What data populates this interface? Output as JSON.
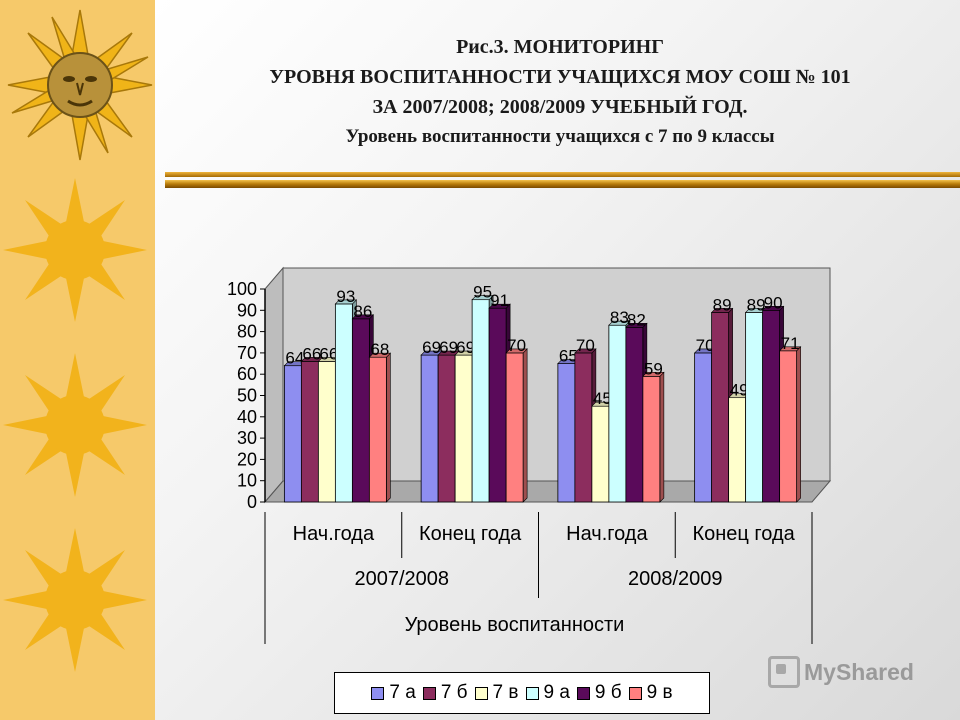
{
  "header": {
    "line1": "Рис.3. МОНИТОРИНГ",
    "line2": "УРОВНЯ ВОСПИТАННОСТИ УЧАЩИХСЯ МОУ СОШ № 101",
    "line3": "ЗА 2007/2008; 2008/2009 УЧЕБНЫЙ ГОД.",
    "line4": "Уровень воспитанности учащихся с 7 по 9 классы"
  },
  "watermark": {
    "text": "MyShared"
  },
  "colors": {
    "left_strip": "#f6c96a",
    "sun": "#f2b31c",
    "rule": "#c07d08"
  },
  "chart_data": {
    "type": "bar",
    "title": "",
    "categories": [
      "Нач.года",
      "Конец года",
      "Нач.года",
      "Конец года"
    ],
    "groups": [
      "2007/2008",
      "2008/2009"
    ],
    "xlabel": "Уровень воспитанности",
    "ylabel": "",
    "ylim": [
      0,
      100
    ],
    "yticks": [
      0,
      10,
      20,
      30,
      40,
      50,
      60,
      70,
      80,
      90,
      100
    ],
    "legend_position": "bottom",
    "grid": false,
    "series": [
      {
        "name": "7 а",
        "color": "#8e8ef0",
        "values": [
          64,
          69,
          65,
          70
        ],
        "labels": [
          "64",
          "69",
          "65",
          "70"
        ]
      },
      {
        "name": "7 б",
        "color": "#8c2d5e",
        "values": [
          66,
          69,
          70,
          89
        ],
        "labels": [
          "66",
          "69",
          "70",
          "89"
        ]
      },
      {
        "name": "7 в",
        "color": "#ffffcc",
        "values": [
          66,
          69,
          45,
          49
        ],
        "labels": [
          "66",
          "69",
          "45",
          "49"
        ]
      },
      {
        "name": "9 а",
        "color": "#ccffff",
        "values": [
          93,
          95,
          83,
          89
        ],
        "labels": [
          "93",
          "95",
          "83",
          "89"
        ]
      },
      {
        "name": "9 б",
        "color": "#5a0a5a",
        "values": [
          86,
          91,
          82,
          90
        ],
        "labels": [
          "86",
          "91",
          "82",
          "90"
        ]
      },
      {
        "name": "9 в",
        "color": "#ff8080",
        "values": [
          68,
          70,
          59,
          71
        ],
        "labels": [
          "68",
          "70",
          "59",
          "71"
        ]
      }
    ]
  }
}
